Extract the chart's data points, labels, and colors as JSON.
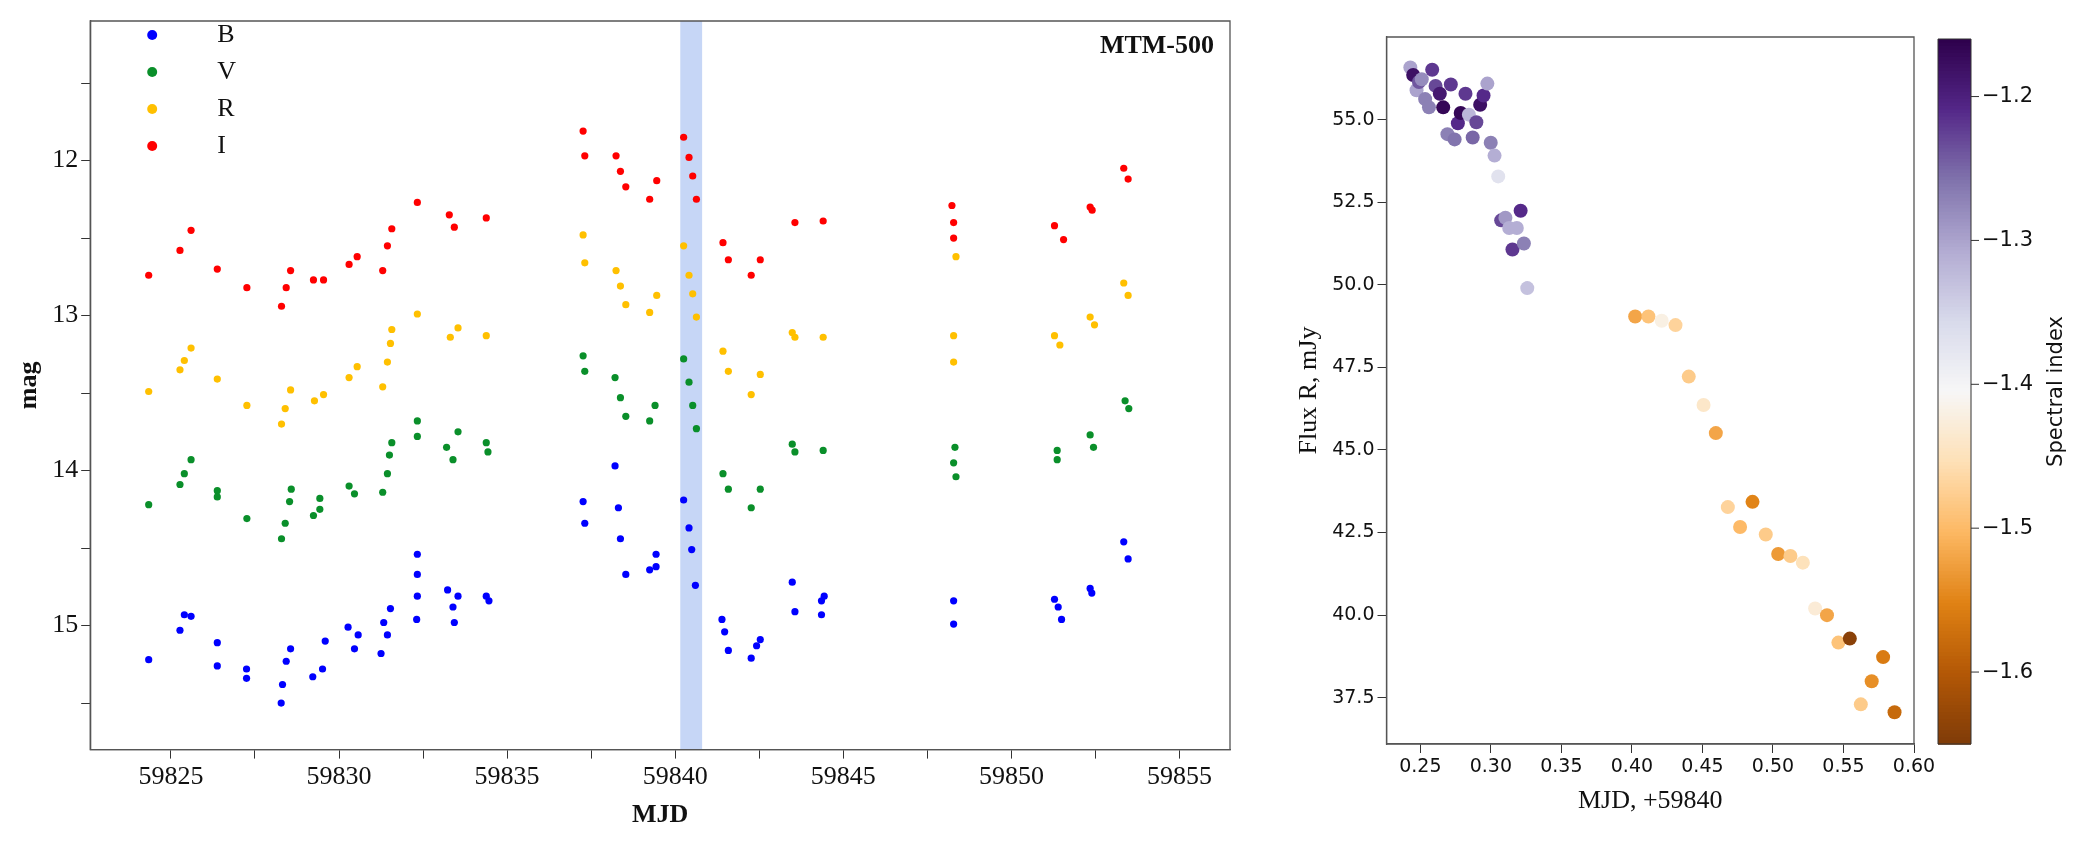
{
  "chart_data": [
    {
      "type": "scatter",
      "xlabel": "MJD",
      "ylabel": "mag",
      "annotations": [
        "MTM-500"
      ],
      "legend": "top left",
      "marker": "circle",
      "xlim": [
        59822.6,
        59856.5
      ],
      "ylim": [
        15.8,
        11.1
      ],
      "xticks": [
        59825,
        {
          "value": 59827.5,
          "label": null
        },
        59830,
        {
          "value": 59832.5,
          "label": null
        },
        59835,
        {
          "value": 59837.5,
          "label": null
        },
        59840,
        {
          "value": 59842.5,
          "label": null
        },
        59845,
        {
          "value": 59847.5,
          "label": null
        },
        59850,
        {
          "value": 59852.5,
          "label": null
        },
        59855
      ],
      "yticks": [
        {
          "value": 11.5,
          "label": null
        },
        12,
        {
          "value": 12.5,
          "label": null
        },
        13,
        {
          "value": 13.5,
          "label": null
        },
        14,
        {
          "value": 14.5,
          "label": null
        },
        15,
        {
          "value": 15.5,
          "label": null
        }
      ],
      "bands": [
        {
          "axis": "x",
          "from": 59840.15,
          "to": 59840.8,
          "color": "#c6d6f6"
        }
      ],
      "series": [
        {
          "name": "B",
          "color": "#0000ff",
          "x": [
            59824.34,
            59825.27,
            59825.4,
            59825.6,
            59826.38,
            59826.38,
            59827.25,
            59827.25,
            59828.28,
            59828.32,
            59828.43,
            59828.56,
            59829.22,
            59829.51,
            59829.59,
            59830.27,
            59830.46,
            59830.57,
            59831.25,
            59831.33,
            59831.44,
            59831.53,
            59832.33,
            59832.33,
            59832.33,
            59832.31,
            59833.23,
            59833.39,
            59833.43,
            59833.54,
            59834.38,
            59834.46,
            59837.26,
            59837.31,
            59838.21,
            59838.31,
            59838.37,
            59838.53,
            59839.24,
            59839.43,
            59839.43,
            59840.25,
            59840.41,
            59840.49,
            59840.6,
            59841.39,
            59841.47,
            59841.58,
            59842.26,
            59842.42,
            59842.53,
            59843.48,
            59843.56,
            59844.35,
            59844.43,
            59844.35,
            59848.28,
            59848.28,
            59851.28,
            59851.39,
            59851.49,
            59852.34,
            59852.39,
            59853.34,
            59853.47
          ],
          "values": [
            15.22,
            15.03,
            14.93,
            14.94,
            15.11,
            15.26,
            15.28,
            15.34,
            15.5,
            15.38,
            15.23,
            15.15,
            15.33,
            15.28,
            15.1,
            15.01,
            15.15,
            15.06,
            15.18,
            14.98,
            15.06,
            14.89,
            14.54,
            14.67,
            14.81,
            14.96,
            14.77,
            14.88,
            14.98,
            14.81,
            14.81,
            14.84,
            14.2,
            14.34,
            13.97,
            14.24,
            14.44,
            14.67,
            14.64,
            14.54,
            14.62,
            14.19,
            14.37,
            14.51,
            14.74,
            14.96,
            15.04,
            15.16,
            15.21,
            15.13,
            15.09,
            14.72,
            14.91,
            14.84,
            14.81,
            14.93,
            14.84,
            14.99,
            14.83,
            14.88,
            14.96,
            14.76,
            14.79,
            14.46,
            14.57
          ]
        },
        {
          "name": "V",
          "color": "#0a8f2a",
          "x": [
            59824.34,
            59825.27,
            59825.4,
            59825.6,
            59826.38,
            59826.38,
            59827.26,
            59828.29,
            59828.4,
            59828.53,
            59828.58,
            59829.24,
            59829.43,
            59829.43,
            59830.3,
            59830.46,
            59831.3,
            59831.44,
            59831.5,
            59831.57,
            59832.33,
            59832.33,
            59833.2,
            59833.39,
            59833.54,
            59834.38,
            59834.43,
            59837.26,
            59837.31,
            59838.21,
            59838.37,
            59838.53,
            59839.24,
            59839.4,
            59840.25,
            59840.41,
            59840.52,
            59840.63,
            59841.42,
            59841.58,
            59842.26,
            59842.53,
            59843.48,
            59843.56,
            59844.4,
            59848.32,
            59848.28,
            59848.35,
            59851.36,
            59851.36,
            59852.34,
            59852.44,
            59853.38,
            59853.49
          ],
          "values": [
            14.22,
            14.09,
            14.02,
            13.93,
            14.13,
            14.17,
            14.31,
            14.44,
            14.34,
            14.2,
            14.12,
            14.29,
            14.25,
            14.18,
            14.1,
            14.15,
            14.14,
            14.02,
            13.9,
            13.82,
            13.68,
            13.78,
            13.85,
            13.93,
            13.75,
            13.82,
            13.88,
            13.26,
            13.36,
            13.4,
            13.53,
            13.65,
            13.68,
            13.58,
            13.28,
            13.43,
            13.58,
            13.73,
            14.02,
            14.12,
            14.24,
            14.12,
            13.83,
            13.88,
            13.87,
            13.85,
            13.95,
            14.04,
            13.87,
            13.93,
            13.77,
            13.85,
            13.55,
            13.6
          ]
        },
        {
          "name": "R",
          "color": "#ffc000",
          "x": [
            59824.34,
            59825.27,
            59825.4,
            59825.6,
            59826.38,
            59827.26,
            59828.29,
            59828.4,
            59828.56,
            59829.27,
            59829.54,
            59830.3,
            59830.54,
            59831.3,
            59831.44,
            59831.53,
            59831.57,
            59832.33,
            59833.31,
            59833.54,
            59834.38,
            59837.26,
            59837.31,
            59838.24,
            59838.37,
            59838.53,
            59839.24,
            59839.45,
            59840.25,
            59840.41,
            59840.52,
            59840.63,
            59841.42,
            59841.58,
            59842.26,
            59842.53,
            59843.48,
            59843.56,
            59844.4,
            59848.28,
            59848.28,
            59848.35,
            59851.28,
            59851.44,
            59852.34,
            59852.47,
            59853.34,
            59853.47
          ],
          "values": [
            13.49,
            13.35,
            13.29,
            13.21,
            13.41,
            13.58,
            13.7,
            13.6,
            13.48,
            13.55,
            13.51,
            13.4,
            13.33,
            13.46,
            13.3,
            13.18,
            13.09,
            12.99,
            13.14,
            13.08,
            13.13,
            12.48,
            12.66,
            12.71,
            12.81,
            12.93,
            12.98,
            12.87,
            12.55,
            12.74,
            12.86,
            13.01,
            13.23,
            13.36,
            13.51,
            13.38,
            13.11,
            13.14,
            13.14,
            13.13,
            13.3,
            12.62,
            13.13,
            13.19,
            13.01,
            13.06,
            12.79,
            12.87
          ]
        },
        {
          "name": "I",
          "color": "#ff0000",
          "x": [
            59824.34,
            59825.27,
            59825.6,
            59826.38,
            59827.26,
            59828.29,
            59828.43,
            59828.56,
            59829.24,
            59829.54,
            59830.3,
            59830.54,
            59831.3,
            59831.44,
            59831.57,
            59832.33,
            59833.28,
            59833.43,
            59834.38,
            59837.26,
            59837.31,
            59838.24,
            59838.37,
            59838.53,
            59839.24,
            59839.45,
            59840.25,
            59840.41,
            59840.52,
            59840.63,
            59841.42,
            59841.58,
            59842.26,
            59842.53,
            59843.56,
            59844.4,
            59848.23,
            59848.28,
            59848.28,
            59851.28,
            59851.55,
            59852.34,
            59852.4,
            59853.34,
            59853.47
          ],
          "values": [
            12.74,
            12.58,
            12.45,
            12.7,
            12.82,
            12.94,
            12.82,
            12.71,
            12.77,
            12.77,
            12.67,
            12.62,
            12.71,
            12.55,
            12.44,
            12.27,
            12.35,
            12.43,
            12.37,
            11.81,
            11.97,
            11.97,
            12.07,
            12.17,
            12.25,
            12.13,
            11.85,
            11.98,
            12.1,
            12.25,
            12.53,
            12.64,
            12.74,
            12.64,
            12.4,
            12.39,
            12.29,
            12.4,
            12.5,
            12.42,
            12.51,
            12.3,
            12.32,
            12.05,
            12.12
          ]
        }
      ]
    },
    {
      "type": "scatter",
      "xlabel": "MJD, +59840",
      "ylabel": "Flux R, mJy",
      "clabel": "Spectral index",
      "marker": "circle",
      "xlim": [
        0.226,
        0.6
      ],
      "ylim": [
        36.1,
        57.5
      ],
      "xticks": [
        0.25,
        {
          "value": 0.3,
          "label": "0.30"
        },
        0.35,
        {
          "value": 0.4,
          "label": "0.40"
        },
        0.45,
        {
          "value": 0.5,
          "label": "0.50"
        },
        0.55,
        {
          "value": 0.6,
          "label": "0.60"
        }
      ],
      "yticks": [
        {
          "value": 37.5,
          "label": "37.5"
        },
        {
          "value": 40,
          "label": "40.0"
        },
        {
          "value": 42.5,
          "label": "42.5"
        },
        {
          "value": 45,
          "label": "45.0"
        },
        {
          "value": 47.5,
          "label": "47.5"
        },
        {
          "value": 50,
          "label": "50.0"
        },
        {
          "value": 52.5,
          "label": "52.5"
        },
        {
          "value": 55,
          "label": "55.0"
        }
      ],
      "clim": [
        -1.65,
        -1.16
      ],
      "cticks": [
        {
          "value": -1.2,
          "label": "−1.2"
        },
        {
          "value": -1.3,
          "label": "−1.3"
        },
        {
          "value": -1.4,
          "label": "−1.4"
        },
        {
          "value": -1.5,
          "label": "−1.5"
        },
        {
          "value": -1.6,
          "label": "−1.6"
        }
      ],
      "x": [
        0.2429,
        0.2449,
        0.2473,
        0.249,
        0.251,
        0.2534,
        0.2561,
        0.2584,
        0.2608,
        0.2638,
        0.2662,
        0.2692,
        0.2716,
        0.2743,
        0.2766,
        0.2786,
        0.282,
        0.2844,
        0.2871,
        0.2897,
        0.2924,
        0.2948,
        0.2975,
        0.2999,
        0.3026,
        0.3052,
        0.3073,
        0.3103,
        0.313,
        0.3153,
        0.3184,
        0.3211,
        0.3234,
        0.3258,
        0.4023,
        0.4117,
        0.4211,
        0.4309,
        0.4403,
        0.4508,
        0.4595,
        0.468,
        0.4767,
        0.4855,
        0.4949,
        0.5037,
        0.5124,
        0.5212,
        0.5299,
        0.5383,
        0.5464,
        0.5545,
        0.5623,
        0.57,
        0.5781,
        0.5862
      ],
      "values": [
        56.58,
        56.35,
        55.89,
        56.14,
        56.22,
        55.62,
        55.37,
        56.51,
        56.02,
        55.78,
        55.37,
        54.56,
        56.06,
        54.4,
        54.89,
        55.2,
        55.78,
        55.15,
        54.46,
        54.92,
        55.45,
        55.73,
        56.09,
        54.3,
        53.91,
        53.28,
        51.95,
        52.03,
        51.72,
        51.07,
        51.72,
        52.24,
        51.25,
        49.9,
        49.04,
        49.04,
        48.91,
        48.78,
        47.22,
        46.36,
        45.51,
        43.27,
        42.67,
        43.43,
        42.44,
        41.85,
        41.79,
        41.59,
        40.2,
        40.0,
        39.17,
        39.29,
        37.3,
        38.0,
        38.73,
        37.06
      ],
      "cvalues": [
        -1.3,
        -1.18,
        -1.3,
        -1.24,
        -1.28,
        -1.27,
        -1.27,
        -1.22,
        -1.23,
        -1.19,
        -1.17,
        -1.27,
        -1.22,
        -1.26,
        -1.21,
        -1.17,
        -1.22,
        -1.32,
        -1.25,
        -1.23,
        -1.18,
        -1.21,
        -1.3,
        -1.27,
        -1.31,
        -1.37,
        -1.23,
        -1.29,
        -1.31,
        -1.22,
        -1.31,
        -1.21,
        -1.27,
        -1.33,
        -1.52,
        -1.49,
        -1.42,
        -1.47,
        -1.48,
        -1.44,
        -1.52,
        -1.47,
        -1.5,
        -1.55,
        -1.48,
        -1.53,
        -1.48,
        -1.45,
        -1.43,
        -1.52,
        -1.49,
        -1.64,
        -1.48,
        -1.54,
        -1.56,
        -1.58
      ]
    }
  ]
}
